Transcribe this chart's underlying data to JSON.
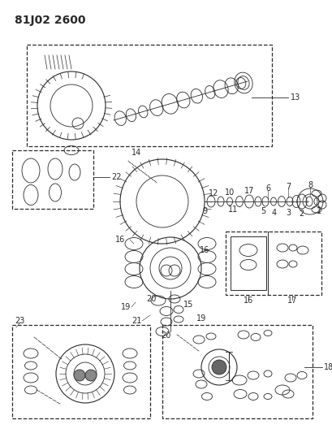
{
  "title": "81J02 2600",
  "bg_color": "#ffffff",
  "line_color": "#2a2a2a",
  "title_fontsize": 10,
  "label_fontsize": 7,
  "fig_width": 4.09,
  "fig_height": 5.33,
  "dpi": 100
}
